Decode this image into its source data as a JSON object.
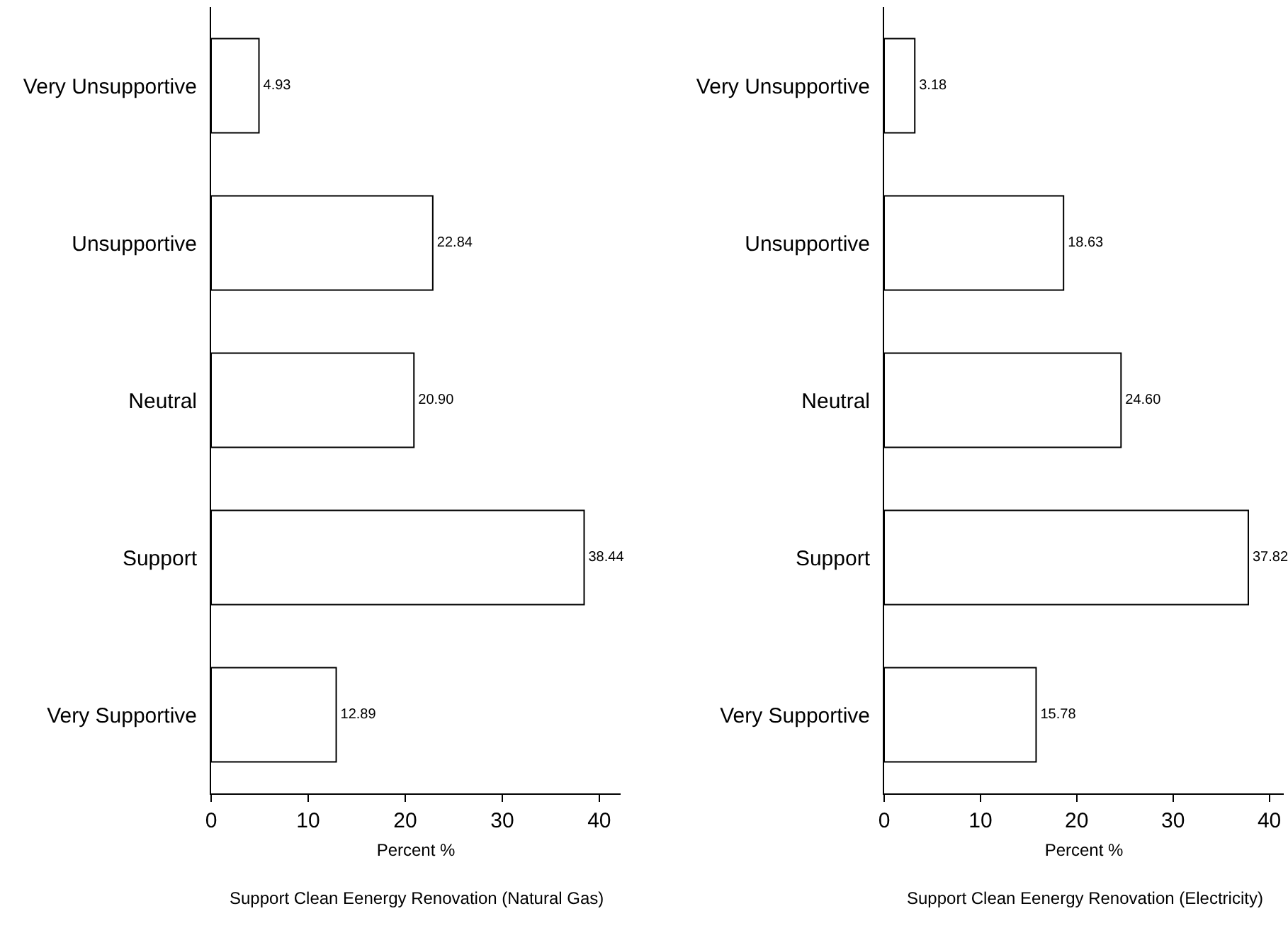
{
  "chart_data": [
    {
      "type": "bar",
      "orientation": "horizontal",
      "xlabel": "Percent %",
      "annotations": [
        "Support Clean Eenergy Renovation (Natural Gas)"
      ],
      "categories": [
        "Very Unsupportive",
        "Unsupportive",
        "Neutral",
        "Support",
        "Very Supportive"
      ],
      "series": [
        {
          "color": "#ffffff",
          "values": [
            4.93,
            22.84,
            20.9,
            38.44,
            12.89
          ],
          "value_labels": [
            "4.93",
            "22.84",
            "20.90",
            "38.44",
            "12.89"
          ]
        }
      ],
      "xlim": [
        0,
        42.2
      ],
      "xticks": [
        0,
        10,
        20,
        30,
        40
      ]
    },
    {
      "type": "bar",
      "orientation": "horizontal",
      "xlabel": "Percent %",
      "annotations": [
        "Support Clean Eenergy Renovation (Electricity)"
      ],
      "categories": [
        "Very Unsupportive",
        "Unsupportive",
        "Neutral",
        "Support",
        "Very Supportive"
      ],
      "series": [
        {
          "color": "#ffffff",
          "values": [
            3.18,
            18.63,
            24.6,
            37.82,
            15.78
          ],
          "value_labels": [
            "3.18",
            "18.63",
            "24.60",
            "37.82",
            "15.78"
          ]
        }
      ],
      "xlim": [
        0,
        41.5
      ],
      "xticks": [
        0,
        10,
        20,
        30,
        40
      ]
    }
  ]
}
